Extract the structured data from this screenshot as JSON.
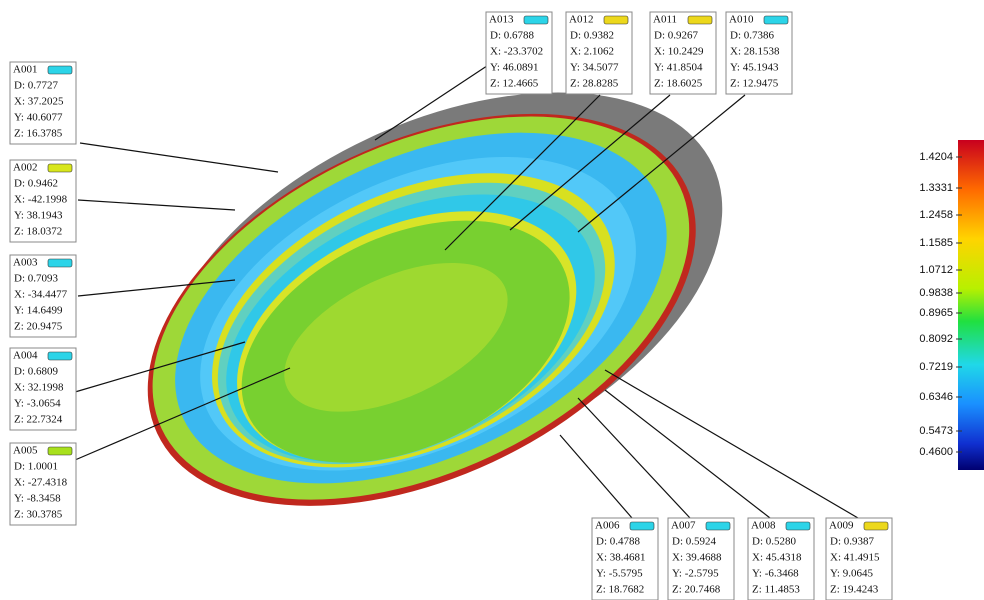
{
  "callouts": [
    {
      "id": "A001",
      "swatch": "#2cd4e8",
      "lines": [
        "D:  0.7727",
        "X:  37.2025",
        "Y:  40.6077",
        "Z:  16.3785"
      ]
    },
    {
      "id": "A002",
      "swatch": "#d8e61c",
      "lines": [
        "D:  0.9462",
        "X: -42.1998",
        "Y:  38.1943",
        "Z:  18.0372"
      ]
    },
    {
      "id": "A003",
      "swatch": "#2cd4e8",
      "lines": [
        "D:  0.7093",
        "X: -34.4477",
        "Y:  14.6499",
        "Z:  20.9475"
      ]
    },
    {
      "id": "A004",
      "swatch": "#2cd4e8",
      "lines": [
        "D:  0.6809",
        "X:  32.1998",
        "Y: -3.0654",
        "Z:  22.7324"
      ]
    },
    {
      "id": "A005",
      "swatch": "#a8e01c",
      "lines": [
        "D:  1.0001",
        "X: -27.4318",
        "Y: -8.3458",
        "Z:  30.3785"
      ]
    },
    {
      "id": "A006",
      "swatch": "#2cd4e8",
      "lines": [
        "D:   0.4788",
        "X:  38.4681",
        "Y:  -5.5795",
        "Z:  18.7682"
      ]
    },
    {
      "id": "A007",
      "swatch": "#2cd4e8",
      "lines": [
        "D:  0.5924",
        "X:  39.4688",
        "Y:  -2.5795",
        "Z:  20.7468"
      ]
    },
    {
      "id": "A008",
      "swatch": "#2cd4e8",
      "lines": [
        "D:  0.5280",
        "X:  45.4318",
        "Y:  -6.3468",
        "Z:   11.4853"
      ]
    },
    {
      "id": "A009",
      "swatch": "#ecd81c",
      "lines": [
        "D:  0.9387",
        "X:  41.4915",
        "Y:  9.0645",
        "Z:  19.4243"
      ]
    },
    {
      "id": "A013",
      "swatch": "#2cd4e8",
      "lines": [
        "D:  0.6788",
        "X: -23.3702",
        "Y:  46.0891",
        "Z:  12.4665"
      ]
    },
    {
      "id": "A012",
      "swatch": "#ecd81c",
      "lines": [
        "D:  0.9382",
        "X:  2.1062",
        "Y:  34.5077",
        "Z:  28.8285"
      ]
    },
    {
      "id": "A011",
      "swatch": "#ecd81c",
      "lines": [
        "D:  0.9267",
        "X:  10.2429",
        "Y:  41.8504",
        "Z:  18.6025"
      ]
    },
    {
      "id": "A010",
      "swatch": "#2cd4e8",
      "lines": [
        "D:  0.7386",
        "X:  28.1538",
        "Y:  45.1943",
        "Z:  12.9475"
      ]
    }
  ],
  "color_scale": {
    "labels": [
      "1.4204",
      "1.3331",
      "1.2458",
      "1.1585",
      "1.0712",
      "0.9838",
      "0.8965",
      "0.8092",
      "0.7219",
      "0.6346",
      "0.5473",
      "0.4600"
    ]
  }
}
